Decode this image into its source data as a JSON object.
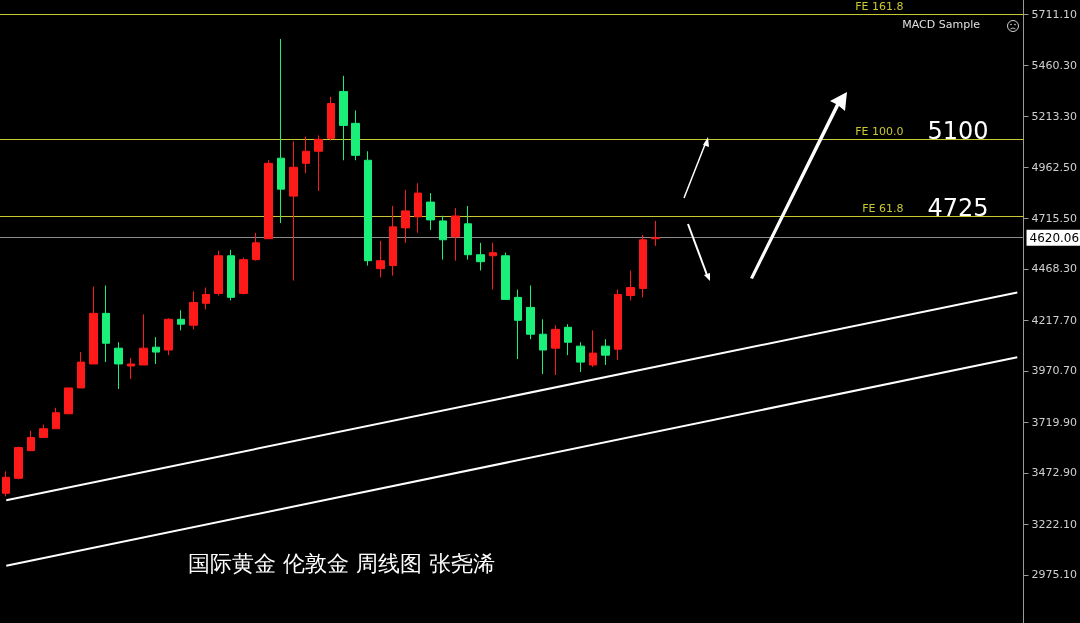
{
  "chart_data": {
    "type": "candlestick",
    "categories": [
      null,
      null,
      null,
      null,
      null,
      null,
      null,
      null,
      null,
      null,
      null,
      null,
      null,
      null,
      null,
      null,
      null,
      null,
      null,
      null,
      null,
      null,
      null,
      null,
      null,
      null,
      null,
      null,
      null,
      null,
      null,
      null,
      null,
      null,
      null,
      null,
      null,
      null,
      null,
      null,
      null,
      null,
      null,
      null,
      null,
      null,
      null,
      null,
      null,
      null,
      null,
      null,
      null,
      null,
      null,
      null,
      null,
      null,
      null,
      null,
      null,
      null,
      null,
      null,
      null,
      null,
      null,
      null,
      null,
      null,
      null,
      null,
      null,
      null,
      null,
      null,
      null,
      null,
      null,
      null,
      null,
      null
    ],
    "ohlc": [
      [
        3373,
        3480,
        3358,
        3451
      ],
      [
        3446,
        3601,
        3441,
        3596
      ],
      [
        3581,
        3678,
        3581,
        3645
      ],
      [
        3645,
        3708,
        3645,
        3688
      ],
      [
        3688,
        3790,
        3688,
        3766
      ],
      [
        3761,
        3887,
        3761,
        3887
      ],
      [
        3887,
        4062,
        3887,
        4013
      ],
      [
        4004,
        4382,
        4004,
        4251
      ],
      [
        4251,
        4387,
        4013,
        4105
      ],
      [
        4081,
        4110,
        3882,
        4004
      ],
      [
        3994,
        4033,
        3931,
        4004
      ],
      [
        3999,
        4246,
        3999,
        4081
      ],
      [
        4086,
        4135,
        4004,
        4062
      ],
      [
        4072,
        4227,
        4047,
        4222
      ],
      [
        4222,
        4266,
        4168,
        4198
      ],
      [
        4193,
        4358,
        4173,
        4304
      ],
      [
        4300,
        4377,
        4270,
        4343
      ],
      [
        4348,
        4557,
        4338,
        4532
      ],
      [
        4532,
        4561,
        4314,
        4329
      ],
      [
        4348,
        4523,
        4343,
        4513
      ],
      [
        4513,
        4644,
        4508,
        4595
      ],
      [
        4615,
        4998,
        4615,
        4983
      ],
      [
        5008,
        5590,
        4692,
        4857
      ],
      [
        4823,
        5090,
        4411,
        4964
      ],
      [
        4983,
        5114,
        4935,
        5042
      ],
      [
        5042,
        5119,
        4848,
        5100
      ],
      [
        5105,
        5308,
        5095,
        5275
      ],
      [
        5333,
        5410,
        4998,
        5168
      ],
      [
        5178,
        5241,
        4998,
        5022
      ],
      [
        4998,
        5042,
        4484,
        4508
      ],
      [
        4469,
        4605,
        4426,
        4508
      ],
      [
        4484,
        4775,
        4435,
        4673
      ],
      [
        4668,
        4853,
        4595,
        4751
      ],
      [
        4722,
        4886,
        4644,
        4838
      ],
      [
        4794,
        4838,
        4658,
        4707
      ],
      [
        4702,
        4727,
        4513,
        4610
      ],
      [
        4625,
        4765,
        4508,
        4726
      ],
      [
        4688,
        4775,
        4513,
        4537
      ],
      [
        4537,
        4595,
        4460,
        4503
      ],
      [
        4532,
        4595,
        4367,
        4547
      ],
      [
        4532,
        4547,
        4319,
        4319
      ],
      [
        4329,
        4367,
        4028,
        4217
      ],
      [
        4280,
        4387,
        4125,
        4149
      ],
      [
        4149,
        4222,
        3955,
        4072
      ],
      [
        4081,
        4193,
        3950,
        4173
      ],
      [
        4183,
        4198,
        4047,
        4110
      ],
      [
        4091,
        4110,
        3965,
        4013
      ],
      [
        3999,
        4168,
        3989,
        4057
      ],
      [
        4091,
        4125,
        3999,
        4047
      ],
      [
        4076,
        4367,
        4023,
        4343
      ],
      [
        4338,
        4460,
        4314,
        4377
      ],
      [
        4372,
        4634,
        4329,
        4610
      ],
      [
        4615,
        4702,
        4580,
        4620
      ],
      null,
      null,
      null,
      null,
      null,
      null,
      null,
      null,
      null,
      null,
      null,
      null,
      null,
      null,
      null,
      null,
      null,
      null,
      null,
      null,
      null,
      null,
      null,
      null,
      null,
      null,
      null,
      null,
      null
    ],
    "colors": [
      "#ff1a1a",
      "#ff1a1a",
      "#ff1a1a",
      "#ff1a1a",
      "#ff1a1a",
      "#ff1a1a",
      "#ff1a1a",
      "#ff1a1a",
      "#1aef7a",
      "#1aef7a",
      "#ff1a1a",
      "#ff1a1a",
      "#1aef7a",
      "#ff1a1a",
      "#1aef7a",
      "#ff1a1a",
      "#ff1a1a",
      "#ff1a1a",
      "#1aef7a",
      "#ff1a1a",
      "#ff1a1a",
      "#ff1a1a",
      "#1aef7a",
      "#ff1a1a",
      "#ff1a1a",
      "#ff1a1a",
      "#ff1a1a",
      "#1aef7a",
      "#1aef7a",
      "#1aef7a",
      "#ff1a1a",
      "#ff1a1a",
      "#ff1a1a",
      "#ff1a1a",
      "#1aef7a",
      "#1aef7a",
      "#ff1a1a",
      "#1aef7a",
      "#1aef7a",
      "#ff1a1a",
      "#1aef7a",
      "#1aef7a",
      "#1aef7a",
      "#1aef7a",
      "#ff1a1a",
      "#1aef7a",
      "#1aef7a",
      "#ff1a1a",
      "#1aef7a",
      "#ff1a1a",
      "#ff1a1a",
      "#ff1a1a",
      "#ff1a1a",
      null,
      null,
      null,
      null,
      null,
      null,
      null,
      null,
      null,
      null,
      null,
      null,
      null,
      null,
      null,
      null,
      null,
      null,
      null,
      null,
      null,
      null,
      null,
      null,
      null,
      null,
      null,
      null,
      null
    ],
    "series": [
      {
        "type": "line",
        "color": "#ffffff",
        "values": [
          3339,
          null,
          null,
          null,
          null,
          null,
          null,
          null,
          null,
          null,
          null,
          null,
          null,
          null,
          null,
          null,
          null,
          null,
          null,
          null,
          null,
          null,
          null,
          null,
          null,
          null,
          null,
          null,
          null,
          null,
          null,
          null,
          null,
          null,
          null,
          null,
          null,
          null,
          null,
          null,
          null,
          null,
          null,
          null,
          null,
          null,
          null,
          null,
          null,
          null,
          null,
          null,
          null,
          null,
          null,
          null,
          null,
          null,
          null,
          null,
          null,
          null,
          null,
          null,
          null,
          null,
          null,
          null,
          null,
          null,
          null,
          null,
          null,
          null,
          null,
          null,
          null,
          null,
          null,
          null,
          null,
          4353
        ]
      },
      {
        "type": "line",
        "color": "#ffffff",
        "values": [
          3019,
          null,
          null,
          null,
          null,
          null,
          null,
          null,
          null,
          null,
          null,
          null,
          null,
          null,
          null,
          null,
          null,
          null,
          null,
          null,
          null,
          null,
          null,
          null,
          null,
          null,
          null,
          null,
          null,
          null,
          null,
          null,
          null,
          null,
          null,
          null,
          null,
          null,
          null,
          null,
          null,
          null,
          null,
          null,
          null,
          null,
          null,
          null,
          null,
          null,
          null,
          null,
          null,
          null,
          null,
          null,
          null,
          null,
          null,
          null,
          null,
          null,
          null,
          null,
          null,
          null,
          null,
          null,
          null,
          null,
          null,
          null,
          null,
          null,
          null,
          null,
          null,
          null,
          null,
          null,
          null,
          4037
        ]
      }
    ],
    "ylim": [
      2740,
      5780
    ],
    "yticks": [
      {
        "value": 2975.1,
        "label": "2975.10"
      },
      {
        "value": 3222.1,
        "label": "3222.10"
      },
      {
        "value": 3472.9,
        "label": "3472.90"
      },
      {
        "value": 3719.9,
        "label": "3719.90"
      },
      {
        "value": 3970.7,
        "label": "3970.70"
      },
      {
        "value": 4217.7,
        "label": "4217.70"
      },
      {
        "value": 4468.3,
        "label": "4468.30"
      },
      {
        "value": 4715.5,
        "label": "4715.50"
      },
      {
        "value": 4962.5,
        "label": "4962.50"
      },
      {
        "value": 5213.3,
        "label": "5213.30"
      },
      {
        "value": 5460.3,
        "label": "5460.30"
      },
      {
        "value": 5711.1,
        "label": "5711.10"
      }
    ],
    "grid": false,
    "ref_lines": [
      {
        "axis": "y",
        "value": 5710,
        "label": "FE 161.8",
        "color": "#c8c832"
      },
      {
        "axis": "y",
        "value": 5100,
        "label": "FE 100.0",
        "color": "#c8c832"
      },
      {
        "axis": "y",
        "value": 4725,
        "label": "FE 61.8",
        "color": "#c8c832"
      },
      {
        "axis": "y",
        "value": 4620.06,
        "label": "4620.06",
        "color": "#8c8c8c"
      }
    ],
    "annotations": [
      "MACD Sample",
      "国际黄金 伦敦金 周线图 张尧浠",
      {
        "text": "5100",
        "y": 5100
      },
      {
        "text": "4725",
        "y": 4725
      }
    ]
  }
}
